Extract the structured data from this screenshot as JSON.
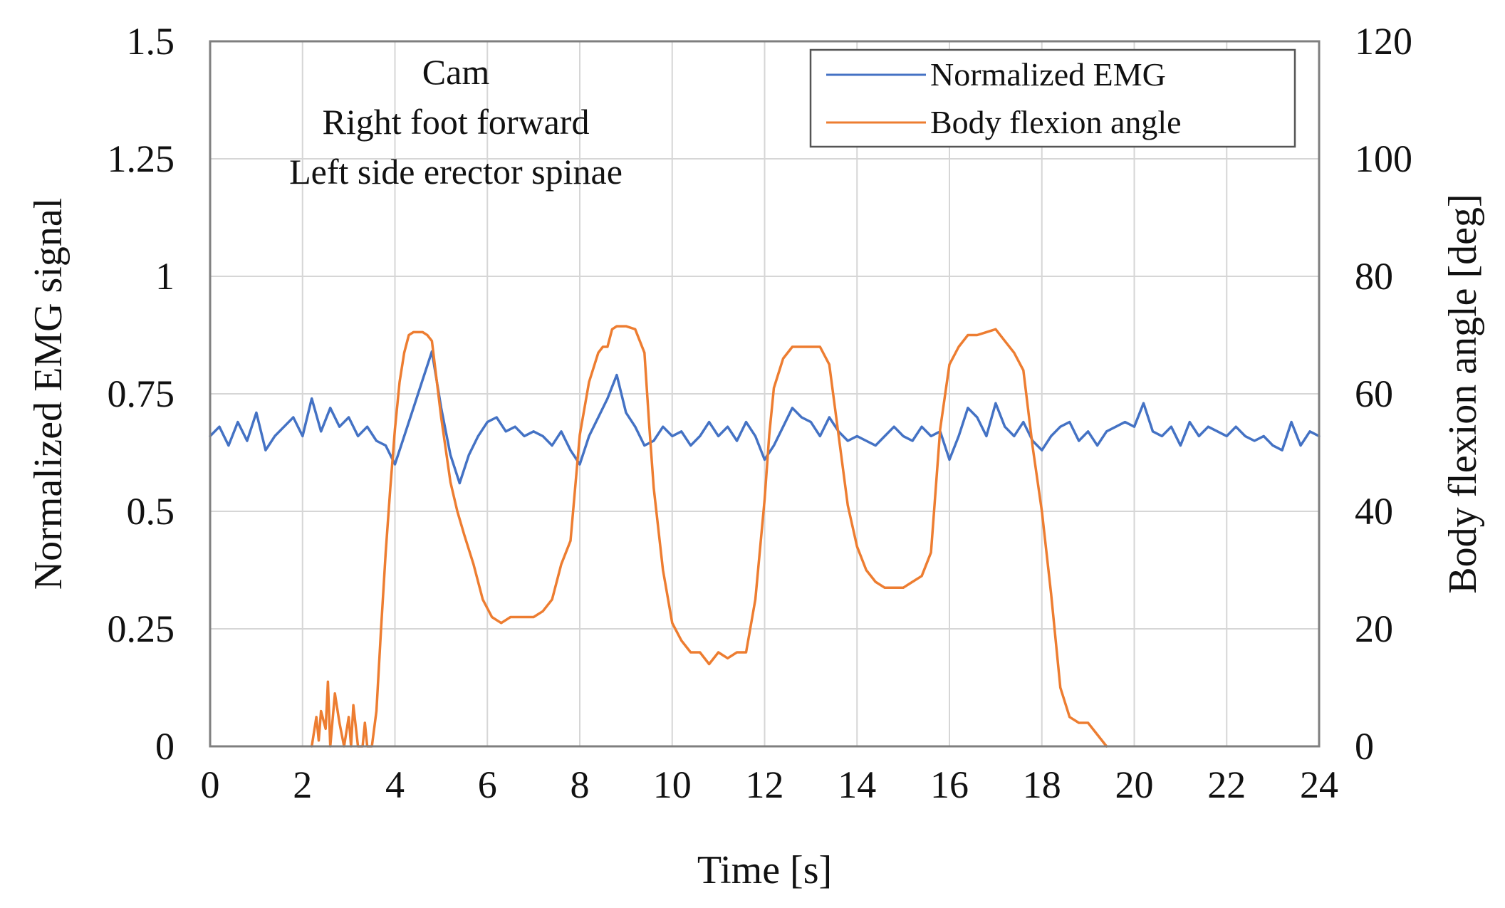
{
  "chart_data": {
    "type": "line",
    "title": "",
    "annotation_lines": [
      "Cam",
      "Right foot forward",
      "Left side erector spinae"
    ],
    "xlabel": "Time [s]",
    "ylabel_left": "Normalized EMG signal",
    "ylabel_right": "Body flexion angle [deg]",
    "xlim": [
      0,
      24
    ],
    "ylim_left": [
      0,
      1.5
    ],
    "ylim_right": [
      0,
      120
    ],
    "x_ticks": [
      "0",
      "2",
      "4",
      "6",
      "8",
      "10",
      "12",
      "14",
      "16",
      "18",
      "20",
      "22",
      "24"
    ],
    "y_left_ticks": [
      "0",
      "0.25",
      "0.5",
      "0.75",
      "1",
      "1.25",
      "1.5"
    ],
    "y_right_ticks": [
      "0",
      "20",
      "40",
      "60",
      "80",
      "100",
      "120"
    ],
    "grid": true,
    "legend": {
      "position": "top-right"
    },
    "colors": {
      "emg": "#4472c4",
      "angle": "#ed7d31"
    },
    "series": [
      {
        "name": "Normalized EMG",
        "axis": "left",
        "x": [
          0,
          0.2,
          0.4,
          0.6,
          0.8,
          1.0,
          1.2,
          1.4,
          1.6,
          1.8,
          2.0,
          2.2,
          2.4,
          2.6,
          2.8,
          3.0,
          3.2,
          3.4,
          3.6,
          3.8,
          4.0,
          4.2,
          4.4,
          4.6,
          4.8,
          5.0,
          5.2,
          5.4,
          5.6,
          5.8,
          6.0,
          6.2,
          6.4,
          6.6,
          6.8,
          7.0,
          7.2,
          7.4,
          7.6,
          7.8,
          8.0,
          8.2,
          8.4,
          8.6,
          8.8,
          9.0,
          9.2,
          9.4,
          9.6,
          9.8,
          10.0,
          10.2,
          10.4,
          10.6,
          10.8,
          11.0,
          11.2,
          11.4,
          11.6,
          11.8,
          12.0,
          12.2,
          12.4,
          12.6,
          12.8,
          13.0,
          13.2,
          13.4,
          13.6,
          13.8,
          14.0,
          14.2,
          14.4,
          14.6,
          14.8,
          15.0,
          15.2,
          15.4,
          15.6,
          15.8,
          16.0,
          16.2,
          16.4,
          16.6,
          16.8,
          17.0,
          17.2,
          17.4,
          17.6,
          17.8,
          18.0,
          18.2,
          18.4,
          18.6,
          18.8,
          19.0,
          19.2,
          19.4,
          19.6,
          19.8,
          20.0,
          20.2,
          20.4,
          20.6,
          20.8,
          21.0,
          21.2,
          21.4,
          21.6,
          21.8,
          22.0,
          22.2,
          22.4,
          22.6,
          22.8,
          23.0,
          23.2,
          23.4,
          23.6,
          23.8,
          24.0
        ],
        "values": [
          0.66,
          0.68,
          0.64,
          0.69,
          0.65,
          0.71,
          0.63,
          0.66,
          0.68,
          0.7,
          0.66,
          0.74,
          0.67,
          0.72,
          0.68,
          0.7,
          0.66,
          0.68,
          0.65,
          0.64,
          0.6,
          0.66,
          0.72,
          0.78,
          0.84,
          0.72,
          0.62,
          0.56,
          0.62,
          0.66,
          0.69,
          0.7,
          0.67,
          0.68,
          0.66,
          0.67,
          0.66,
          0.64,
          0.67,
          0.63,
          0.6,
          0.66,
          0.7,
          0.74,
          0.79,
          0.71,
          0.68,
          0.64,
          0.65,
          0.68,
          0.66,
          0.67,
          0.64,
          0.66,
          0.69,
          0.66,
          0.68,
          0.65,
          0.69,
          0.66,
          0.61,
          0.64,
          0.68,
          0.72,
          0.7,
          0.69,
          0.66,
          0.7,
          0.67,
          0.65,
          0.66,
          0.65,
          0.64,
          0.66,
          0.68,
          0.66,
          0.65,
          0.68,
          0.66,
          0.67,
          0.61,
          0.66,
          0.72,
          0.7,
          0.66,
          0.73,
          0.68,
          0.66,
          0.69,
          0.65,
          0.63,
          0.66,
          0.68,
          0.69,
          0.65,
          0.67,
          0.64,
          0.67,
          0.68,
          0.69,
          0.68,
          0.73,
          0.67,
          0.66,
          0.68,
          0.64,
          0.69,
          0.66,
          0.68,
          0.67,
          0.66,
          0.68,
          0.66,
          0.65,
          0.66,
          0.64,
          0.63,
          0.69,
          0.64,
          0.67,
          0.66
        ]
      },
      {
        "name": "Body flexion angle",
        "axis": "right",
        "x": [
          2.2,
          2.3,
          2.35,
          2.4,
          2.5,
          2.55,
          2.6,
          2.7,
          2.8,
          2.9,
          3.0,
          3.05,
          3.1,
          3.2,
          3.3,
          3.35,
          3.4,
          3.5,
          3.6,
          3.7,
          3.8,
          3.9,
          4.0,
          4.1,
          4.2,
          4.3,
          4.4,
          4.5,
          4.6,
          4.7,
          4.8,
          5.0,
          5.2,
          5.35,
          5.5,
          5.7,
          5.9,
          6.1,
          6.3,
          6.5,
          6.6,
          6.8,
          7.0,
          7.2,
          7.4,
          7.6,
          7.8,
          8.0,
          8.2,
          8.4,
          8.5,
          8.6,
          8.7,
          8.8,
          9.0,
          9.2,
          9.4,
          9.5,
          9.6,
          9.8,
          10.0,
          10.2,
          10.4,
          10.6,
          10.8,
          11.0,
          11.2,
          11.4,
          11.6,
          11.8,
          12.0,
          12.1,
          12.2,
          12.4,
          12.6,
          12.8,
          13.0,
          13.2,
          13.4,
          13.6,
          13.8,
          14.0,
          14.2,
          14.4,
          14.6,
          14.8,
          15.0,
          15.2,
          15.4,
          15.6,
          15.8,
          16.0,
          16.2,
          16.4,
          16.6,
          16.8,
          17.0,
          17.2,
          17.4,
          17.6,
          17.8,
          18.0,
          18.2,
          18.4,
          18.6,
          18.8,
          19.0,
          19.2,
          19.4
        ],
        "values": [
          0,
          5,
          1,
          6,
          3,
          11,
          0,
          9,
          4,
          0,
          5,
          0,
          7,
          0,
          0,
          4,
          0,
          0,
          6,
          20,
          33,
          44,
          54,
          62,
          67,
          70,
          70.5,
          70.5,
          70.5,
          70,
          69,
          56,
          45,
          40,
          36,
          31,
          25,
          22,
          21,
          22,
          22,
          22,
          22,
          23,
          25,
          31,
          35,
          53,
          62,
          67,
          68,
          68,
          71,
          71.5,
          71.5,
          71,
          67,
          55,
          44,
          30,
          21,
          18,
          16,
          16,
          14,
          16,
          15,
          16,
          16,
          25,
          42,
          53,
          61,
          66,
          68,
          68,
          68,
          68,
          65,
          53,
          41,
          34,
          30,
          28,
          27,
          27,
          27,
          28,
          29,
          33,
          54,
          65,
          68,
          70,
          70,
          70.5,
          71,
          69,
          67,
          64,
          51,
          40,
          26,
          10,
          5,
          4,
          4,
          2,
          0
        ]
      }
    ]
  }
}
